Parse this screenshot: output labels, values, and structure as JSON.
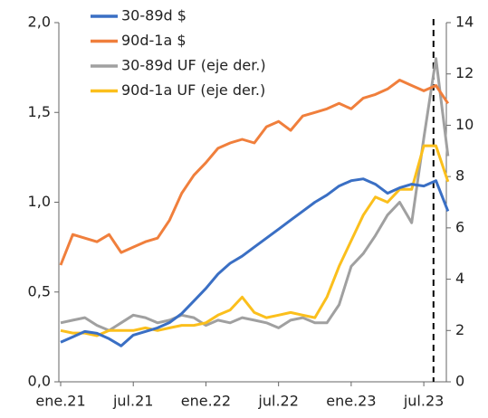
{
  "chart_data": {
    "type": "line",
    "categories": [
      "ene.21",
      null,
      null,
      null,
      null,
      null,
      "jul.21",
      null,
      null,
      null,
      null,
      null,
      "ene.22",
      null,
      null,
      null,
      null,
      null,
      "jul.22",
      null,
      null,
      null,
      null,
      null,
      "ene.23",
      null,
      null,
      null,
      null,
      null,
      "jul.23",
      null,
      null
    ],
    "series": [
      {
        "name": "30-89d $",
        "color": "#3a6fc4",
        "values": [
          0.22,
          0.25,
          0.28,
          0.27,
          0.24,
          0.2,
          0.26,
          0.28,
          0.3,
          0.33,
          0.38,
          0.45,
          0.52,
          0.6,
          0.66,
          0.7,
          0.75,
          0.8,
          0.85,
          0.9,
          0.95,
          1.0,
          1.04,
          1.09,
          1.12,
          1.13,
          1.1,
          1.05,
          1.08,
          1.1,
          1.09,
          1.12,
          0.95
        ]
      },
      {
        "name": "90d-1a $",
        "color": "#f07f3c",
        "values": [
          0.65,
          0.82,
          0.8,
          0.78,
          0.82,
          0.72,
          0.75,
          0.78,
          0.8,
          0.9,
          1.05,
          1.15,
          1.22,
          1.3,
          1.33,
          1.35,
          1.33,
          1.42,
          1.45,
          1.4,
          1.48,
          1.5,
          1.52,
          1.55,
          1.52,
          1.58,
          1.6,
          1.63,
          1.68,
          1.65,
          1.62,
          1.65,
          1.55
        ]
      },
      {
        "name": "30-89d UF (eje der.)",
        "color": "#a0a0a0",
        "axis": "y2",
        "values": [
          2.3,
          2.4,
          2.5,
          2.2,
          2.0,
          2.3,
          2.6,
          2.5,
          2.3,
          2.4,
          2.6,
          2.5,
          2.2,
          2.4,
          2.3,
          2.5,
          2.4,
          2.3,
          2.1,
          2.4,
          2.5,
          2.3,
          2.3,
          3.0,
          4.5,
          5.0,
          5.7,
          6.5,
          7.0,
          6.2,
          9.5,
          12.6,
          8.8
        ]
      },
      {
        "name": "90d-1a UF (eje der.)",
        "color": "#fbbf1c",
        "axis": "y2",
        "values": [
          2.0,
          1.9,
          1.9,
          1.8,
          2.0,
          2.0,
          2.0,
          2.1,
          2.0,
          2.1,
          2.2,
          2.2,
          2.3,
          2.6,
          2.8,
          3.3,
          2.7,
          2.5,
          2.6,
          2.7,
          2.6,
          2.5,
          3.3,
          4.5,
          5.5,
          6.5,
          7.2,
          7.0,
          7.5,
          7.5,
          9.2,
          9.2,
          7.8
        ]
      }
    ],
    "ylim": [
      0,
      2
    ],
    "yticks": [
      {
        "value": 0,
        "label": "0,0"
      },
      {
        "value": 0.5,
        "label": "0,5"
      },
      {
        "value": 1,
        "label": "1,0"
      },
      {
        "value": 1.5,
        "label": "1,5"
      },
      {
        "value": 2,
        "label": "2,0"
      }
    ],
    "y2lim": [
      0,
      14
    ],
    "y2ticks": [
      0,
      2,
      4,
      6,
      8,
      10,
      12,
      14
    ],
    "dashed_line_at": 30.8,
    "legend": "upper left"
  }
}
